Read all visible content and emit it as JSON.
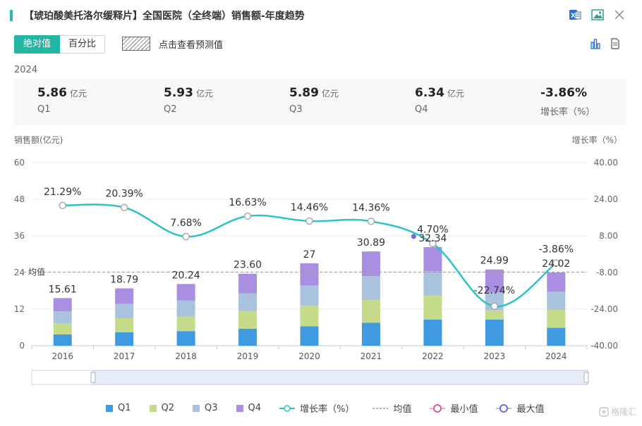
{
  "header": {
    "title": "【琥珀酸美托洛尔缓释片】全国医院（全终端）销售额-年度趋势",
    "icons": [
      "excel-export-icon",
      "image-export-icon",
      "close-icon"
    ]
  },
  "toolbar": {
    "tabs": [
      {
        "label": "绝对值",
        "active": true
      },
      {
        "label": "百分比",
        "active": false
      }
    ],
    "forecast_label": "点击查看预测值",
    "view_icons": [
      "bar-chart-icon",
      "document-icon"
    ]
  },
  "summary": {
    "year": "2024",
    "stats": [
      {
        "value": "5.86",
        "unit": "亿元",
        "name": "Q1"
      },
      {
        "value": "5.93",
        "unit": "亿元",
        "name": "Q2"
      },
      {
        "value": "5.89",
        "unit": "亿元",
        "name": "Q3"
      },
      {
        "value": "6.34",
        "unit": "亿元",
        "name": "Q4"
      },
      {
        "value": "-3.86%",
        "unit": "",
        "name": "增长率（%）"
      }
    ]
  },
  "chart_data": {
    "type": "bar",
    "stacked": true,
    "categories": [
      "2016",
      "2017",
      "2018",
      "2019",
      "2020",
      "2021",
      "2022",
      "2023",
      "2024"
    ],
    "totals": [
      "15.61",
      "18.79",
      "20.24",
      "23.60",
      "27",
      "30.89",
      "32.34",
      "24.99",
      "24.02"
    ],
    "series": [
      {
        "name": "Q1",
        "color": "#3f9ae0",
        "values": [
          3.7,
          4.4,
          4.8,
          5.6,
          6.4,
          7.5,
          8.6,
          8.6,
          5.86
        ]
      },
      {
        "name": "Q2",
        "color": "#c6db8a",
        "values": [
          3.7,
          4.6,
          4.9,
          5.8,
          6.7,
          7.5,
          7.9,
          3.0,
          5.93
        ]
      },
      {
        "name": "Q3",
        "color": "#a9c3de",
        "values": [
          3.9,
          4.7,
          5.1,
          5.8,
          6.6,
          7.8,
          7.9,
          5.8,
          5.89
        ]
      },
      {
        "name": "Q4",
        "color": "#a98ee2",
        "values": [
          4.31,
          5.09,
          5.44,
          6.4,
          7.3,
          8.09,
          7.94,
          7.59,
          6.34
        ]
      }
    ],
    "growth": {
      "name": "增长率（%）",
      "color": "#2cc3c6",
      "values": [
        21.29,
        20.39,
        7.68,
        16.63,
        14.46,
        14.36,
        4.7,
        -22.74,
        -3.86
      ],
      "labels": [
        "21.29%",
        "20.39%",
        "7.68%",
        "16.63%",
        "14.46%",
        "14.36%",
        "4.70%",
        "-22.74%",
        "-3.86%"
      ]
    },
    "average": {
      "name": "均值",
      "label": "均值",
      "value": 24.14
    },
    "left_axis": {
      "label": "销售额(亿元)",
      "min": 0,
      "max": 60,
      "ticks": [
        "0",
        "12",
        "24",
        "36",
        "48",
        "60"
      ]
    },
    "right_axis": {
      "label": "增长率（%）",
      "min": -40,
      "max": 40,
      "ticks": [
        "-40.00",
        "-24.00",
        "-8.00",
        "8.00",
        "24.00",
        "40.00"
      ]
    },
    "legend_position": "bottom",
    "legend": [
      {
        "name": "Q1",
        "type": "square",
        "color": "#3f9ae0"
      },
      {
        "name": "Q2",
        "type": "square",
        "color": "#c6db8a"
      },
      {
        "name": "Q3",
        "type": "square",
        "color": "#a9c3de"
      },
      {
        "name": "Q4",
        "type": "square",
        "color": "#a98ee2"
      },
      {
        "name": "增长率（%）",
        "type": "line",
        "color": "#2cc3c6"
      },
      {
        "name": "均值",
        "type": "dash",
        "color": "#999999"
      },
      {
        "name": "最小值",
        "type": "ring",
        "color": "#e0559c"
      },
      {
        "name": "最大值",
        "type": "ring",
        "color": "#6670d6"
      }
    ]
  },
  "watermark": "格隆汇"
}
